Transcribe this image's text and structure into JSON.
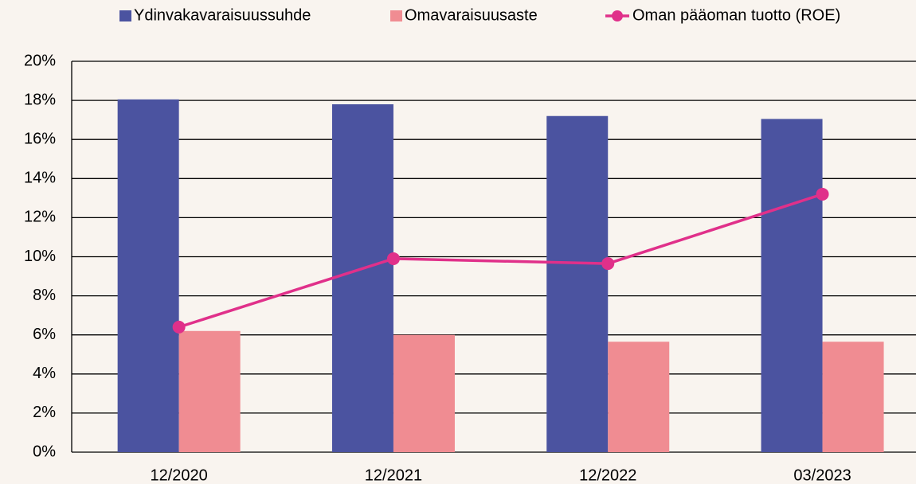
{
  "chart_data": {
    "type": "bar_line",
    "categories": [
      "12/2020",
      "12/2021",
      "12/2022",
      "03/2023"
    ],
    "series": [
      {
        "name": "Ydinvakavaraisuussuhde",
        "type": "bar",
        "color": "#4b53a0",
        "values": [
          18.05,
          17.8,
          17.2,
          17.05
        ]
      },
      {
        "name": "Omavaraisuusaste",
        "type": "bar",
        "color": "#f08c92",
        "values": [
          6.2,
          6.0,
          5.65,
          5.65
        ]
      },
      {
        "name": "Oman pääoman tuotto (ROE)",
        "type": "line",
        "color": "#e0308a",
        "values": [
          6.4,
          9.9,
          9.65,
          13.2
        ]
      }
    ],
    "ylim": [
      0,
      20
    ],
    "yticks": [
      {
        "value": 0,
        "label": "0%"
      },
      {
        "value": 2,
        "label": "2%"
      },
      {
        "value": 4,
        "label": "4%"
      },
      {
        "value": 6,
        "label": "6%"
      },
      {
        "value": 8,
        "label": "8%"
      },
      {
        "value": 10,
        "label": "10%"
      },
      {
        "value": 12,
        "label": "12%"
      },
      {
        "value": 14,
        "label": "14%"
      },
      {
        "value": 16,
        "label": "16%"
      },
      {
        "value": 18,
        "label": "18%"
      },
      {
        "value": 20,
        "label": "20%"
      }
    ],
    "grid": true,
    "legend": "top"
  }
}
